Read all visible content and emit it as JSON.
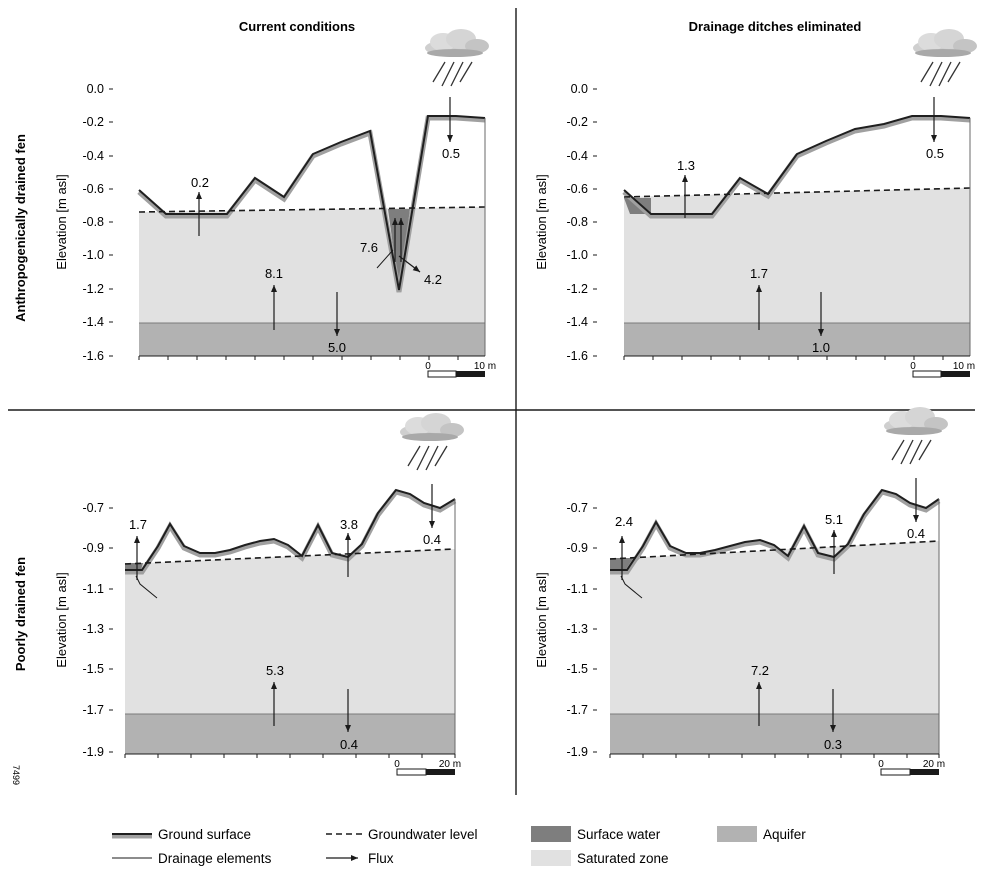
{
  "columns": [
    "Current conditions",
    "Drainage ditches eliminated"
  ],
  "rows": [
    "Anthropogenically drained fen",
    "Poorly drained fen"
  ],
  "y_axis_label": "Elevation [m asl]",
  "figure_number": "7499",
  "legend": {
    "ground_surface": "Ground surface",
    "groundwater_level": "Groundwater level",
    "surface_water": "Surface water",
    "aquifer": "Aquifer",
    "drainage_elements": "Drainage elements",
    "flux": "Flux",
    "saturated_zone": "Saturated zone"
  },
  "colors": {
    "saturated": "#e1e1e1",
    "aquifer": "#b2b2b2",
    "surface_water": "#7e7e7e",
    "ground_line": "#1f1f1f",
    "ground_shadow": "#9a9a9a"
  },
  "panels": [
    {
      "id": "top-left",
      "yticks": [
        "0.0",
        "-0.2",
        "-0.4",
        "-0.6",
        "-0.8",
        "-1.0",
        "-1.2",
        "-1.4",
        "-1.6"
      ],
      "scale": [
        "0",
        "10 m"
      ],
      "fluxes": [
        "0.2",
        "0.5",
        "7.6",
        "4.2",
        "8.1",
        "5.0"
      ]
    },
    {
      "id": "top-right",
      "yticks": [
        "0.0",
        "-0.2",
        "-0.4",
        "-0.6",
        "-0.8",
        "-1.0",
        "-1.2",
        "-1.4",
        "-1.6"
      ],
      "scale": [
        "0",
        "10 m"
      ],
      "fluxes": [
        "1.3",
        "0.5",
        "1.7",
        "1.0"
      ]
    },
    {
      "id": "bottom-left",
      "yticks": [
        "-0.7",
        "-0.9",
        "-1.1",
        "-1.3",
        "-1.5",
        "-1.7",
        "-1.9"
      ],
      "scale": [
        "0",
        "20 m"
      ],
      "fluxes": [
        "1.7",
        "3.8",
        "0.4",
        "5.3",
        "0.4"
      ]
    },
    {
      "id": "bottom-right",
      "yticks": [
        "-0.7",
        "-0.9",
        "-1.1",
        "-1.3",
        "-1.5",
        "-1.7",
        "-1.9"
      ],
      "scale": [
        "0",
        "20 m"
      ],
      "fluxes": [
        "2.4",
        "5.1",
        "0.4",
        "7.2",
        "0.3"
      ]
    }
  ]
}
